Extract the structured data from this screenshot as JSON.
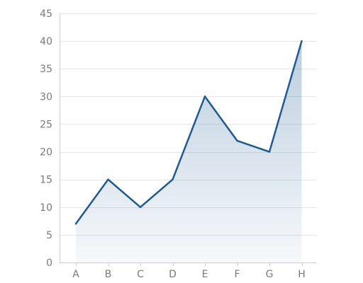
{
  "chart_data": {
    "type": "area",
    "categories": [
      "A",
      "B",
      "C",
      "D",
      "E",
      "F",
      "G",
      "H"
    ],
    "series": [
      {
        "values": [
          7,
          15,
          10,
          15,
          30,
          22,
          20,
          40
        ]
      }
    ],
    "title": "",
    "xlabel": "",
    "ylabel": "",
    "ylim": [
      0,
      45
    ],
    "yticks": [
      0,
      5,
      10,
      15,
      20,
      25,
      30,
      35,
      40,
      45
    ],
    "grid": true,
    "legend": "none",
    "colors": {
      "line": "#1f5a92",
      "fill_top": "#1f5a92",
      "fill_bottom": "#ffffff"
    }
  }
}
